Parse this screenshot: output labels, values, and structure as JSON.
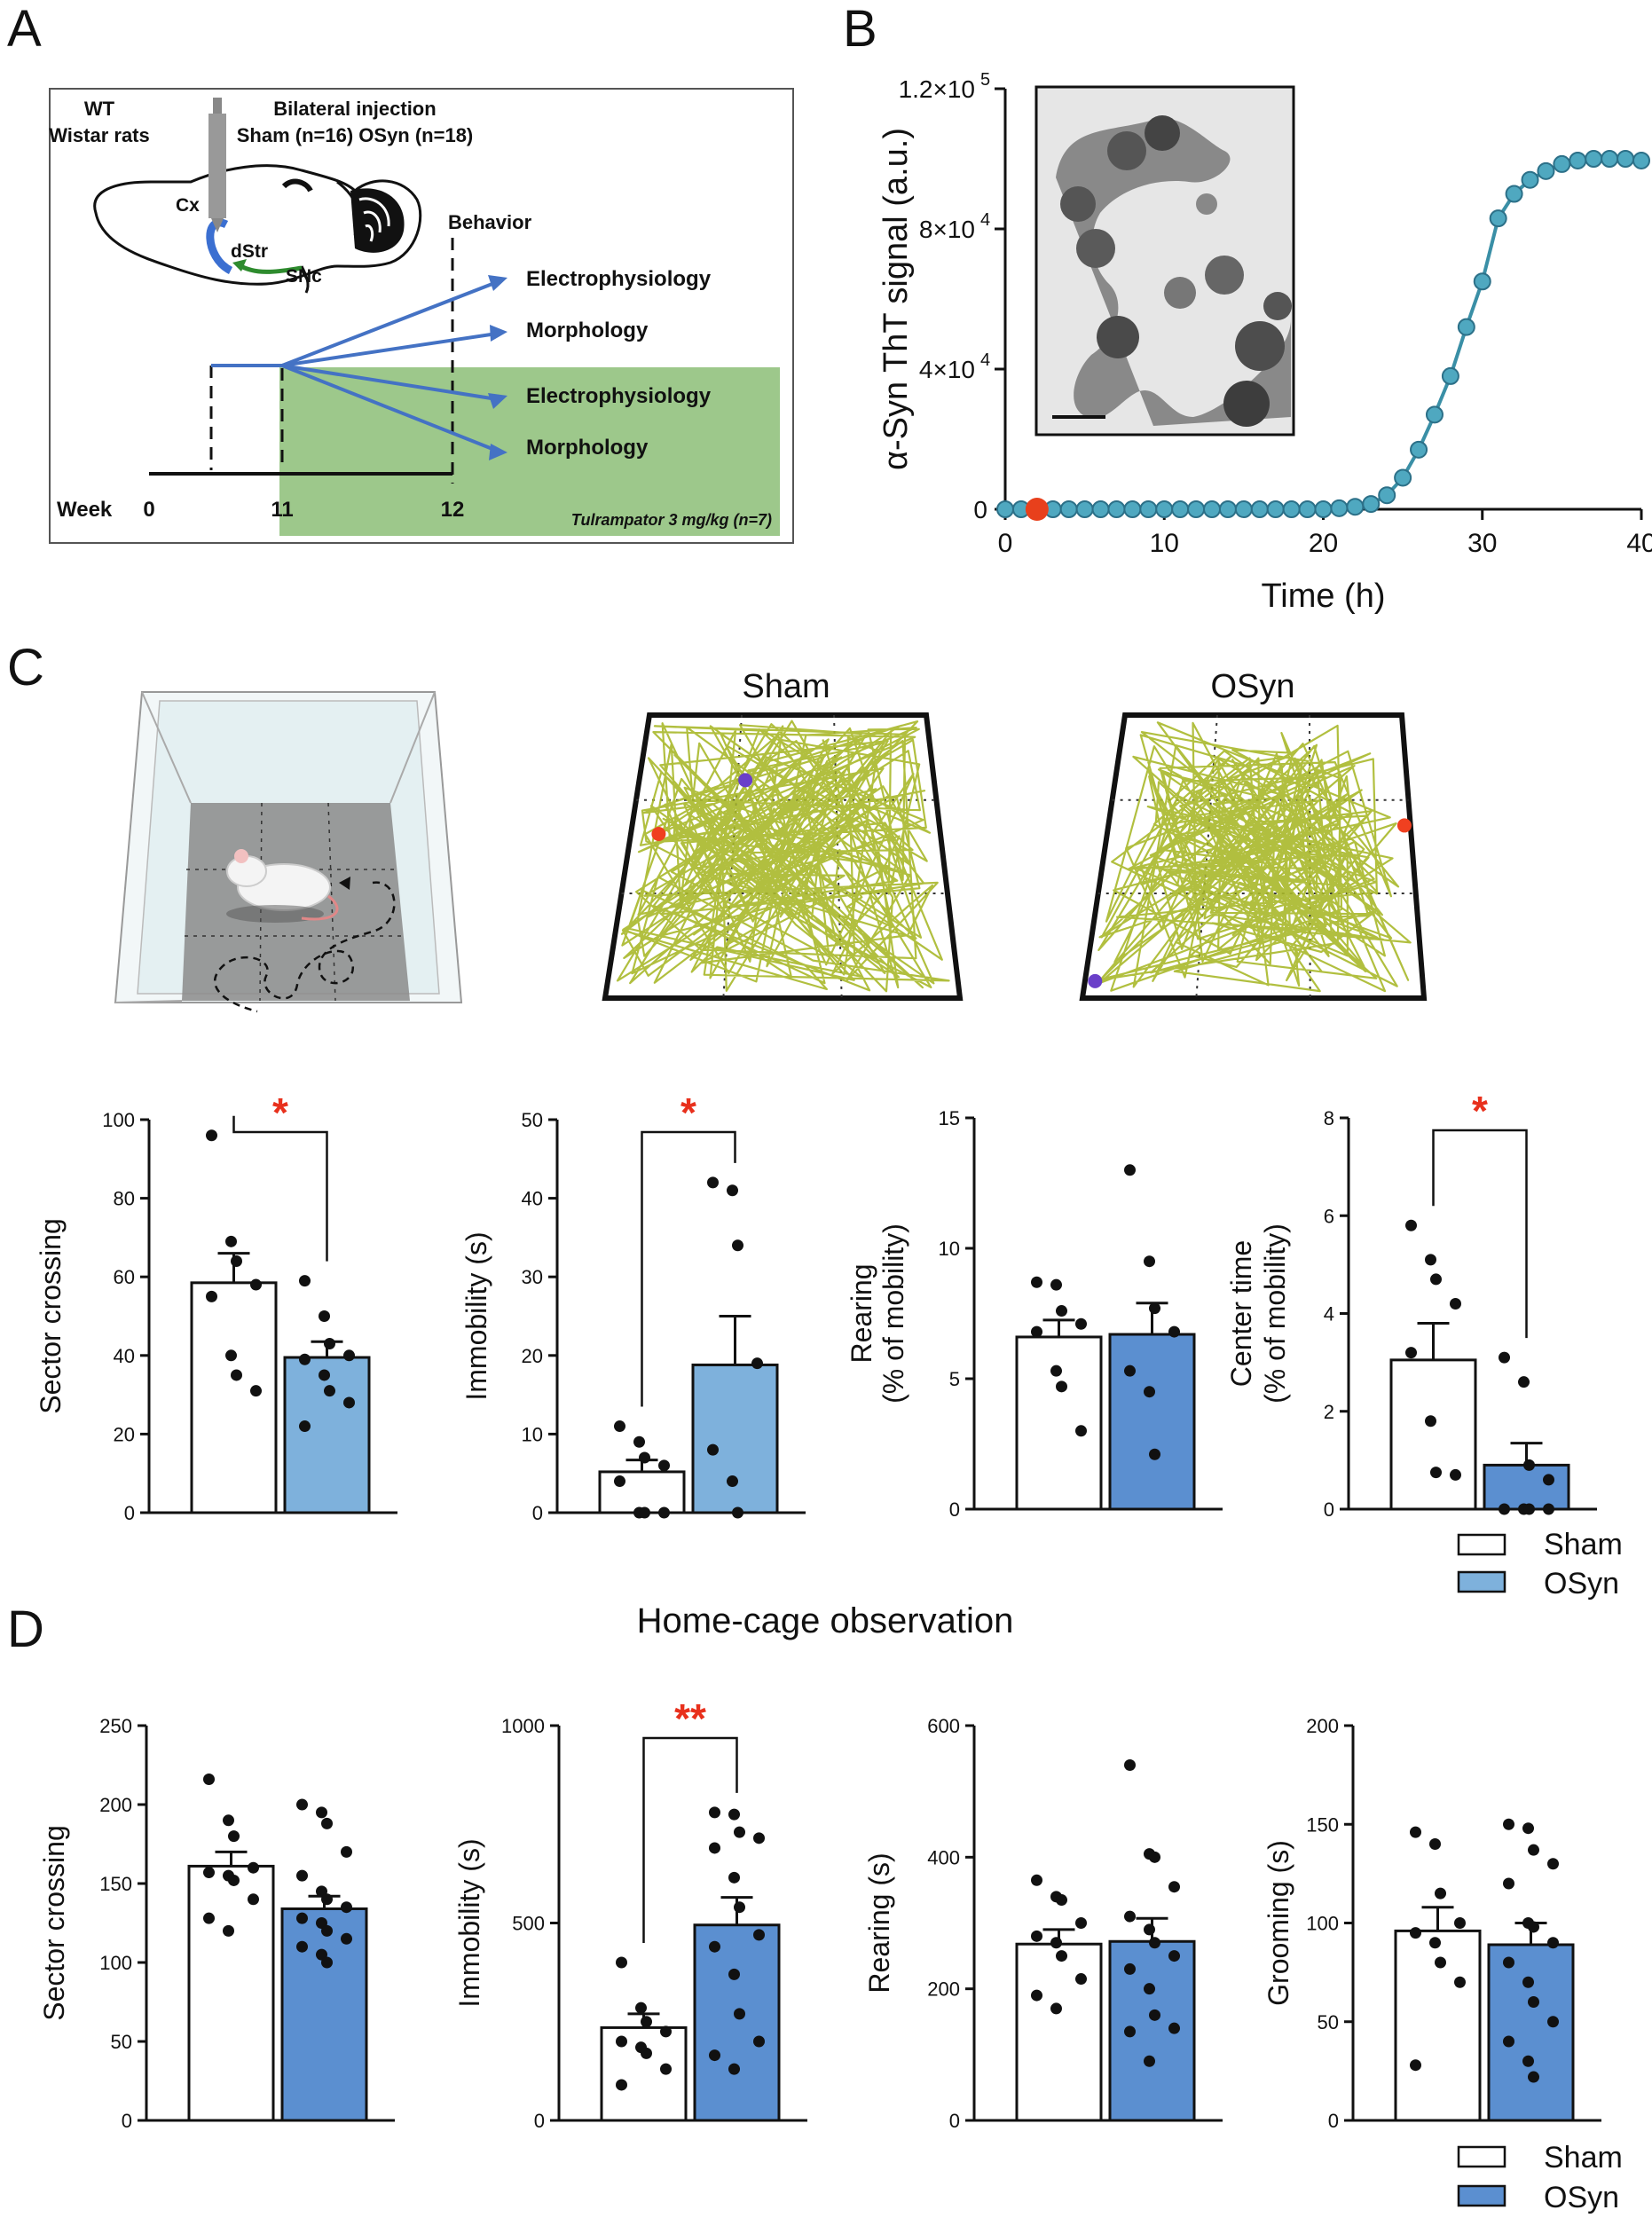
{
  "panel_labels": [
    "A",
    "B",
    "C",
    "D"
  ],
  "panelA": {
    "animal_line1": "WT",
    "animal_line2": "Wistar rats",
    "injection_line1": "Bilateral injection",
    "injection_line2": "Sham (n=16) OSyn (n=18)",
    "region_cx": "Cx",
    "region_dstr": "dStr",
    "region_snc": "SNc",
    "behavior": "Behavior",
    "out_electro_1": "Electrophysiology",
    "out_morph_1": "Morphology",
    "out_electro_2": "Electrophysiology",
    "out_morph_2": "Morphology",
    "week_label": "Week",
    "week_ticks": [
      "0",
      "11",
      "12"
    ],
    "treatment": "Tulrampator 3 mg/kg (n=7)",
    "colors": {
      "treatment_bg": "#9dc88b",
      "arrow": "#4472c4",
      "cortex": "#3b6fd1",
      "snc": "#2e8b2e"
    }
  },
  "chart_data": [
    {
      "id": "B",
      "type": "line",
      "title": "",
      "xlabel": "Time (h)",
      "ylabel": "α-Syn ThT signal (a.u.)",
      "xlim": [
        0,
        40
      ],
      "ylim": [
        0,
        120000
      ],
      "xticks": [
        "0",
        "10",
        "20",
        "30",
        "40"
      ],
      "yticks": [
        {
          "value": 0,
          "mantissa": "0",
          "exp": ""
        },
        {
          "value": 40000,
          "mantissa": "4×10",
          "exp": "4"
        },
        {
          "value": 80000,
          "mantissa": "8×10",
          "exp": "4"
        },
        {
          "value": 120000,
          "mantissa": "1.2×10",
          "exp": "5"
        }
      ],
      "x": [
        0,
        1,
        2,
        3,
        4,
        5,
        6,
        7,
        8,
        9,
        10,
        11,
        12,
        13,
        14,
        15,
        16,
        17,
        18,
        19,
        20,
        21,
        22,
        23,
        24,
        25,
        26,
        27,
        28,
        29,
        30,
        31,
        32,
        33,
        34,
        35,
        36,
        37,
        38,
        39,
        40
      ],
      "values": [
        0,
        0,
        0,
        0,
        0,
        0,
        0,
        0,
        0,
        0,
        0,
        0,
        0,
        0,
        0,
        0,
        0,
        0,
        0,
        0,
        0,
        300,
        700,
        1500,
        4000,
        9000,
        17000,
        27000,
        38000,
        52000,
        65000,
        83000,
        90000,
        94000,
        96500,
        98500,
        99500,
        100000,
        100000,
        100000,
        99500
      ],
      "highlight_x": 2,
      "colors": {
        "line": "#3a8fa6",
        "marker": "#4fa8c0",
        "highlight": "#e8401c"
      }
    },
    {
      "id": "C1",
      "type": "bar",
      "ylabel": "Sector crossing",
      "ylim": [
        0,
        100
      ],
      "yticks": [
        "0",
        "20",
        "40",
        "60",
        "80",
        "100"
      ],
      "categories": [
        "Sham",
        "OSyn"
      ],
      "means": [
        58.5,
        39.5
      ],
      "sem": [
        7.5,
        4.0
      ],
      "points": [
        [
          96,
          69,
          64,
          58,
          55,
          40,
          35,
          31
        ],
        [
          59,
          50,
          43,
          40,
          39,
          35,
          31,
          28,
          22
        ]
      ],
      "significance": "*"
    },
    {
      "id": "C2",
      "type": "bar",
      "ylabel": "Immobility (s)",
      "ylim": [
        0,
        50
      ],
      "yticks": [
        "0",
        "10",
        "20",
        "30",
        "40",
        "50"
      ],
      "categories": [
        "Sham",
        "OSyn"
      ],
      "means": [
        5.2,
        18.8
      ],
      "sem": [
        1.5,
        6.2
      ],
      "points": [
        [
          11,
          9,
          7,
          6,
          4,
          0,
          0,
          0
        ],
        [
          42,
          41,
          34,
          19,
          8,
          4,
          0
        ]
      ],
      "significance": "*"
    },
    {
      "id": "C3",
      "type": "bar",
      "ylabel": "Rearing",
      "ylabel2": "(% of mobility)",
      "ylim": [
        0,
        15
      ],
      "yticks": [
        "0",
        "5",
        "10",
        "15"
      ],
      "categories": [
        "Sham",
        "OSyn"
      ],
      "means": [
        6.6,
        6.7
      ],
      "sem": [
        0.65,
        1.2
      ],
      "points": [
        [
          8.7,
          8.6,
          7.6,
          7.1,
          6.8,
          5.3,
          4.7,
          3.0
        ],
        [
          13.0,
          9.5,
          7.7,
          6.8,
          5.3,
          4.5,
          2.1
        ]
      ],
      "significance": ""
    },
    {
      "id": "C4",
      "type": "bar",
      "ylabel": "Center time",
      "ylabel2": "(% of mobility)",
      "ylim": [
        0,
        8
      ],
      "yticks": [
        "0",
        "2",
        "4",
        "6",
        "8"
      ],
      "categories": [
        "Sham",
        "OSyn"
      ],
      "means": [
        3.05,
        0.9
      ],
      "sem": [
        0.75,
        0.45
      ],
      "points": [
        [
          5.8,
          5.1,
          4.7,
          4.2,
          3.2,
          1.8,
          0.75,
          0.7
        ],
        [
          3.1,
          2.6,
          0.9,
          0.6,
          0,
          0,
          0,
          0
        ]
      ],
      "significance": "*"
    },
    {
      "id": "D1",
      "type": "bar",
      "ylabel": "Sector crossing",
      "ylim": [
        0,
        250
      ],
      "yticks": [
        "0",
        "50",
        "100",
        "150",
        "200",
        "250"
      ],
      "categories": [
        "Sham",
        "OSyn"
      ],
      "means": [
        161,
        134
      ],
      "sem": [
        9,
        8
      ],
      "points": [
        [
          216,
          190,
          180,
          160,
          157,
          155,
          152,
          140,
          128,
          120
        ],
        [
          200,
          195,
          188,
          170,
          155,
          145,
          140,
          135,
          128,
          125,
          120,
          115,
          110,
          105,
          100
        ]
      ],
      "significance": ""
    },
    {
      "id": "D2",
      "type": "bar",
      "ylabel": "Immobility (s)",
      "ylim": [
        0,
        1000
      ],
      "yticks": [
        "0",
        "500",
        "1000"
      ],
      "categories": [
        "Sham",
        "OSyn"
      ],
      "means": [
        235,
        495
      ],
      "sem": [
        35,
        70
      ],
      "points": [
        [
          400,
          285,
          250,
          225,
          200,
          185,
          170,
          130,
          90
        ],
        [
          780,
          775,
          730,
          715,
          690,
          615,
          540,
          470,
          440,
          370,
          270,
          200,
          165,
          130
        ]
      ],
      "significance": "**"
    },
    {
      "id": "D3",
      "type": "bar",
      "ylabel": "Rearing (s)",
      "ylim": [
        0,
        600
      ],
      "yticks": [
        "0",
        "200",
        "400",
        "600"
      ],
      "categories": [
        "Sham",
        "OSyn"
      ],
      "means": [
        268,
        272
      ],
      "sem": [
        22,
        35
      ],
      "points": [
        [
          365,
          340,
          335,
          300,
          280,
          270,
          250,
          215,
          190,
          170
        ],
        [
          540,
          405,
          400,
          355,
          310,
          290,
          270,
          250,
          230,
          200,
          160,
          140,
          135,
          90
        ]
      ],
      "significance": ""
    },
    {
      "id": "D4",
      "type": "bar",
      "ylabel": "Grooming (s)",
      "ylim": [
        0,
        200
      ],
      "yticks": [
        "0",
        "50",
        "100",
        "150",
        "200"
      ],
      "categories": [
        "Sham",
        "OSyn"
      ],
      "means": [
        96,
        89
      ],
      "sem": [
        12,
        11
      ],
      "points": [
        [
          146,
          140,
          115,
          100,
          95,
          90,
          80,
          70,
          28
        ],
        [
          150,
          148,
          137,
          130,
          120,
          100,
          98,
          90,
          80,
          70,
          60,
          50,
          40,
          30,
          22
        ]
      ],
      "significance": ""
    }
  ],
  "panelC": {
    "track_sham_title": "Sham",
    "track_osyn_title": "OSyn"
  },
  "panelD": {
    "title": "Home-cage observation"
  },
  "legend": {
    "sham": "Sham",
    "osyn": "OSyn",
    "colors": {
      "sham": "#ffffff",
      "osyn_c": "#7eb1dc",
      "osyn_d": "#5b8fd0",
      "sig": "#e8301c"
    }
  }
}
